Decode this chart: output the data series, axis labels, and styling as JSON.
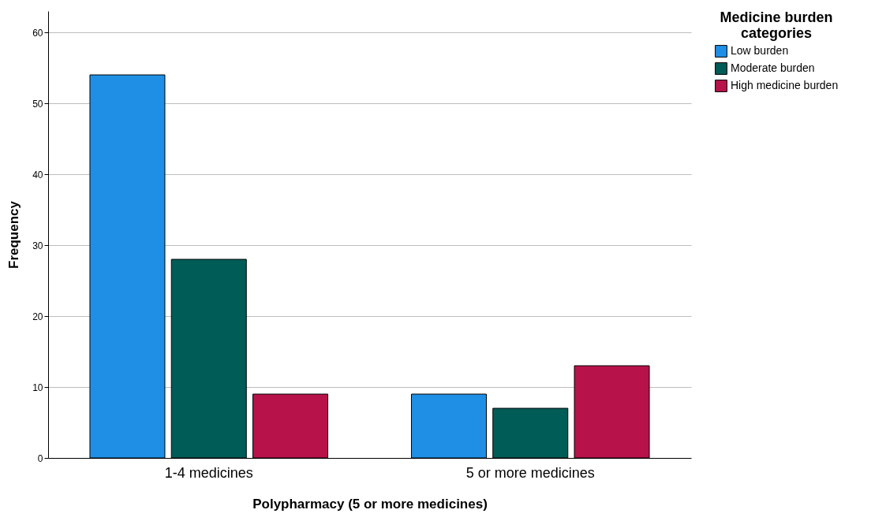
{
  "chart_data": {
    "type": "bar",
    "xlabel": "Polypharmacy (5 or more medicines)",
    "ylabel": "Frequency",
    "legend_title": "Medicine burden categories",
    "categories": [
      "1-4 medicines",
      "5 or more medicines"
    ],
    "series": [
      {
        "name": "Low burden",
        "color": "#1f8fe5",
        "values": [
          54,
          9
        ]
      },
      {
        "name": "Moderate burden",
        "color": "#005c57",
        "values": [
          28,
          7
        ]
      },
      {
        "name": "High medicine burden",
        "color": "#b8124a",
        "values": [
          9,
          13
        ]
      }
    ],
    "ylim": [
      0,
      63
    ],
    "yticks": [
      0,
      10,
      20,
      30,
      40,
      50,
      60
    ],
    "grid": "y",
    "legend": "right"
  }
}
